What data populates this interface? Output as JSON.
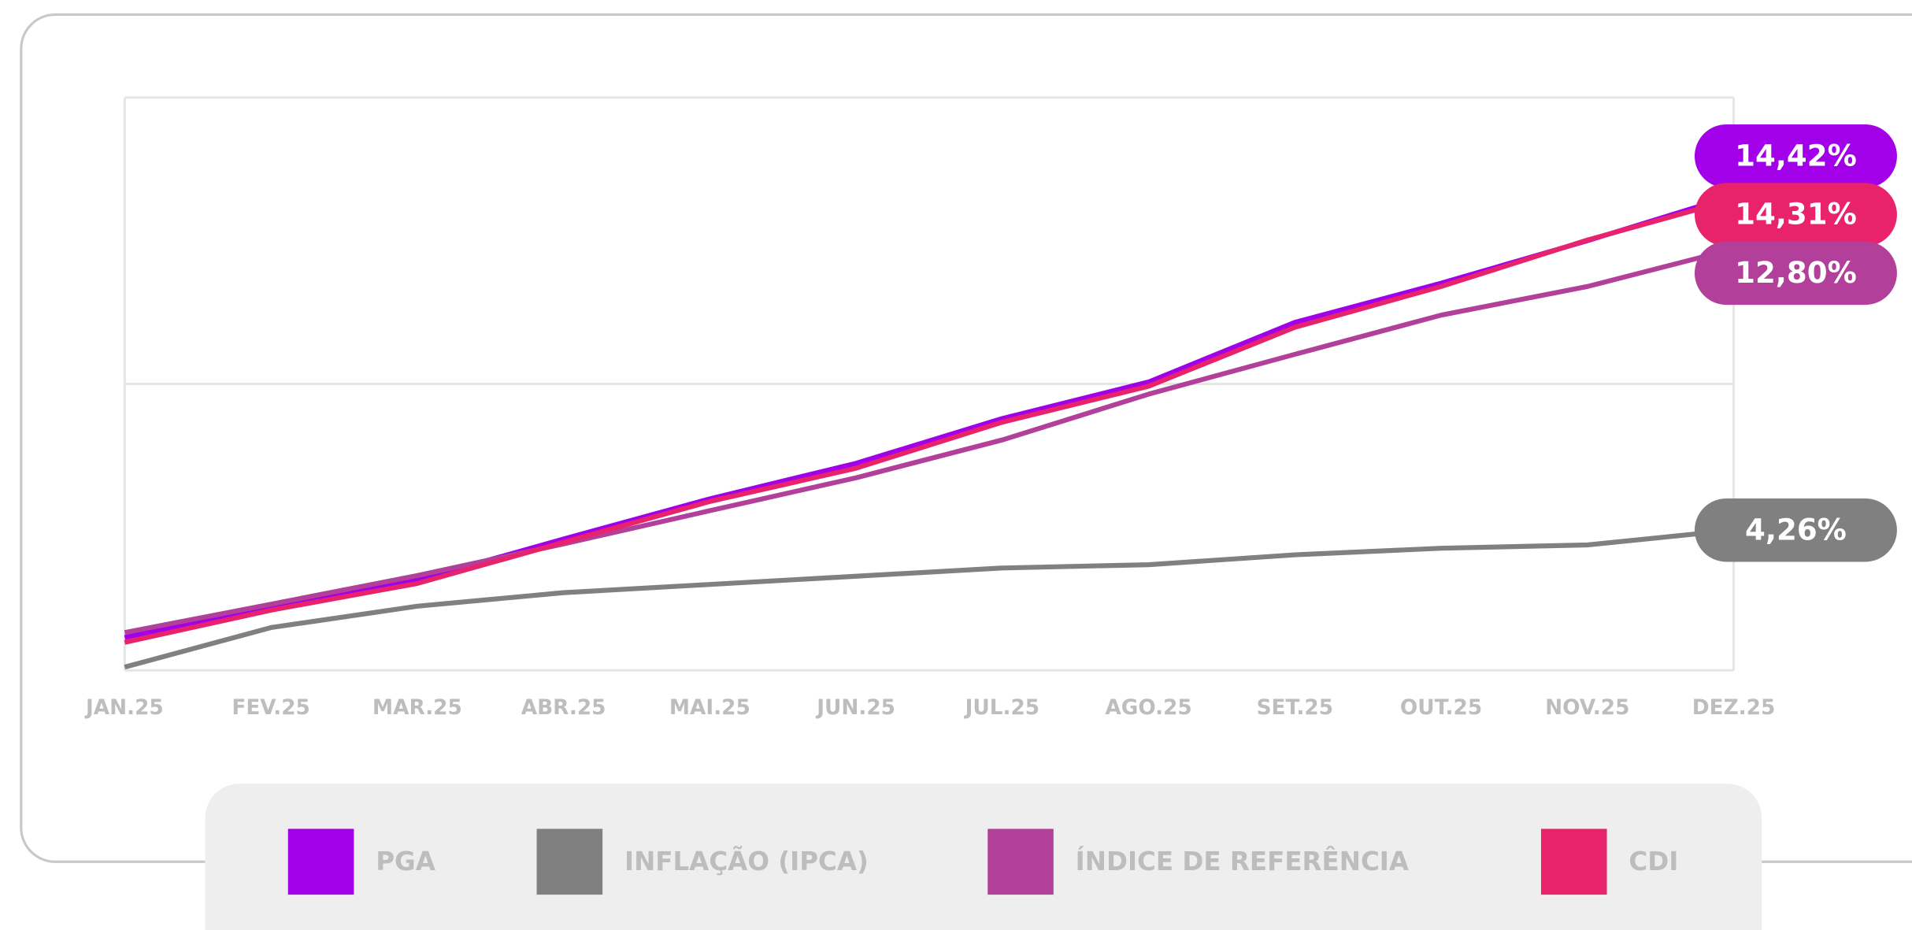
{
  "chart_data": {
    "type": "line",
    "categories": [
      "JAN.25",
      "FEV.25",
      "MAR.25",
      "ABR.25",
      "MAI.25",
      "JUN.25",
      "JUL.25",
      "AGO.25",
      "SET.25",
      "OUT.25",
      "NOV.25",
      "DEZ.25"
    ],
    "ylim": [
      0,
      17.4
    ],
    "yticks": [
      0,
      8.7,
      17.4
    ],
    "grid": true,
    "series": [
      {
        "name": "PGA",
        "color": "#a100e8",
        "values": [
          1.0,
          1.96,
          2.74,
          3.99,
          5.21,
          6.29,
          7.65,
          8.76,
          10.57,
          11.76,
          13.05,
          14.42
        ],
        "value_labels": [
          null,
          null,
          null,
          null,
          null,
          null,
          null,
          null,
          null,
          null,
          null,
          "14,42%"
        ]
      },
      {
        "name": "INFLAÇÃO (IPCA)",
        "color": "#808080",
        "values": [
          0.1,
          1.3,
          1.95,
          2.36,
          2.61,
          2.86,
          3.11,
          3.21,
          3.51,
          3.71,
          3.81,
          4.26
        ],
        "value_labels": [
          null,
          null,
          null,
          null,
          null,
          null,
          null,
          null,
          null,
          null,
          null,
          "4,26%"
        ]
      },
      {
        "name": "ÍNDICE DE REFERÊNCIA",
        "color": "#b2409a",
        "values": [
          1.15,
          2.01,
          2.88,
          3.84,
          4.85,
          5.85,
          7.0,
          8.39,
          9.6,
          10.79,
          11.66,
          12.8
        ],
        "value_labels": [
          null,
          null,
          null,
          null,
          null,
          null,
          null,
          null,
          null,
          null,
          null,
          "12,80%"
        ]
      },
      {
        "name": "CDI",
        "color": "#e8236c",
        "values": [
          0.85,
          1.83,
          2.64,
          3.89,
          5.13,
          6.14,
          7.54,
          8.63,
          10.42,
          11.66,
          13.07,
          14.31
        ],
        "value_labels": [
          null,
          null,
          null,
          null,
          null,
          null,
          null,
          null,
          null,
          null,
          null,
          "14,31%"
        ]
      }
    ]
  }
}
